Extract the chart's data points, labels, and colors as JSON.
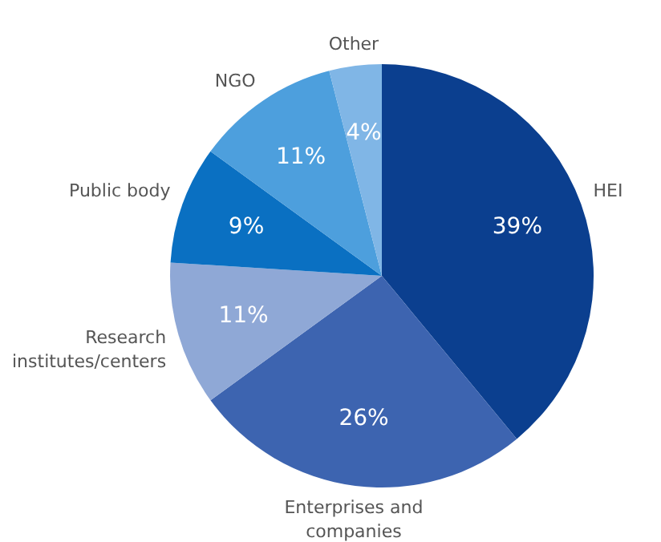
{
  "chart_data": {
    "type": "pie",
    "categories": [
      "HEI",
      "Enterprises and companies",
      "Research institutes/centers",
      "Public body",
      "NGO",
      "Other"
    ],
    "values": [
      39,
      26,
      11,
      9,
      11,
      4
    ],
    "value_labels": [
      "39%",
      "26%",
      "11%",
      "9%",
      "11%",
      "4%"
    ],
    "colors": [
      "#0b3f8f",
      "#3d64b0",
      "#8fa8d6",
      "#0a70c2",
      "#4d9fdd",
      "#80b6e6"
    ]
  }
}
